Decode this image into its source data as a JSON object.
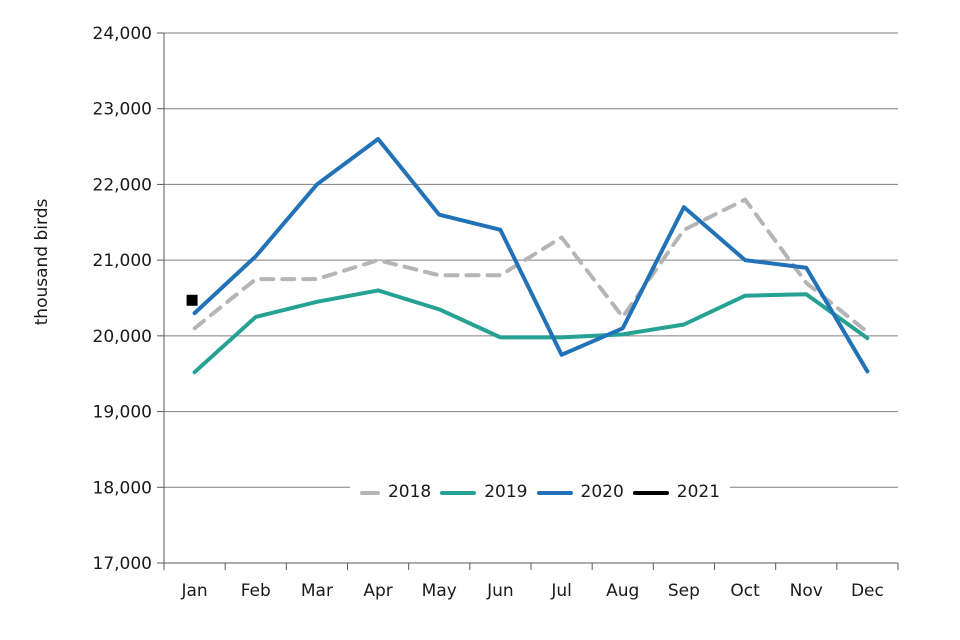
{
  "chart_data": {
    "type": "line",
    "title": "",
    "ylabel": "thousand birds",
    "x_categories": [
      "Jan",
      "Feb",
      "Mar",
      "Apr",
      "May",
      "Jun",
      "Jul",
      "Aug",
      "Sep",
      "Oct",
      "Nov",
      "Dec"
    ],
    "y_min": 17000,
    "y_max": 24000,
    "y_step": 1000,
    "y_tick_labels": [
      "17,000",
      "18,000",
      "19,000",
      "20,000",
      "21,000",
      "22,000",
      "23,000",
      "24,000"
    ],
    "grid": "horizontal-only",
    "legend_position": "inside-bottom-center",
    "series": [
      {
        "name": "2018",
        "color": "#b5b5b5",
        "line_style": "dashed",
        "marker": "none",
        "values": [
          20100,
          20750,
          20750,
          21000,
          20800,
          20800,
          21300,
          20250,
          21400,
          21800,
          20700,
          20050
        ]
      },
      {
        "name": "2019",
        "color": "#26a294",
        "line_style": "solid",
        "marker": "none",
        "values": [
          19520,
          20250,
          20450,
          20600,
          20350,
          19980,
          19980,
          20020,
          20150,
          20530,
          20550,
          19970
        ]
      },
      {
        "name": "2020",
        "color": "#2272b8",
        "line_style": "solid",
        "marker": "none",
        "values": [
          20300,
          21050,
          22000,
          22600,
          21600,
          21400,
          19750,
          20100,
          21700,
          21000,
          20900,
          19530
        ]
      },
      {
        "name": "2021",
        "color": "#000000",
        "line_style": "none",
        "marker": "square",
        "values": [
          20470,
          null,
          null,
          null,
          null,
          null,
          null,
          null,
          null,
          null,
          null,
          null
        ]
      }
    ]
  }
}
